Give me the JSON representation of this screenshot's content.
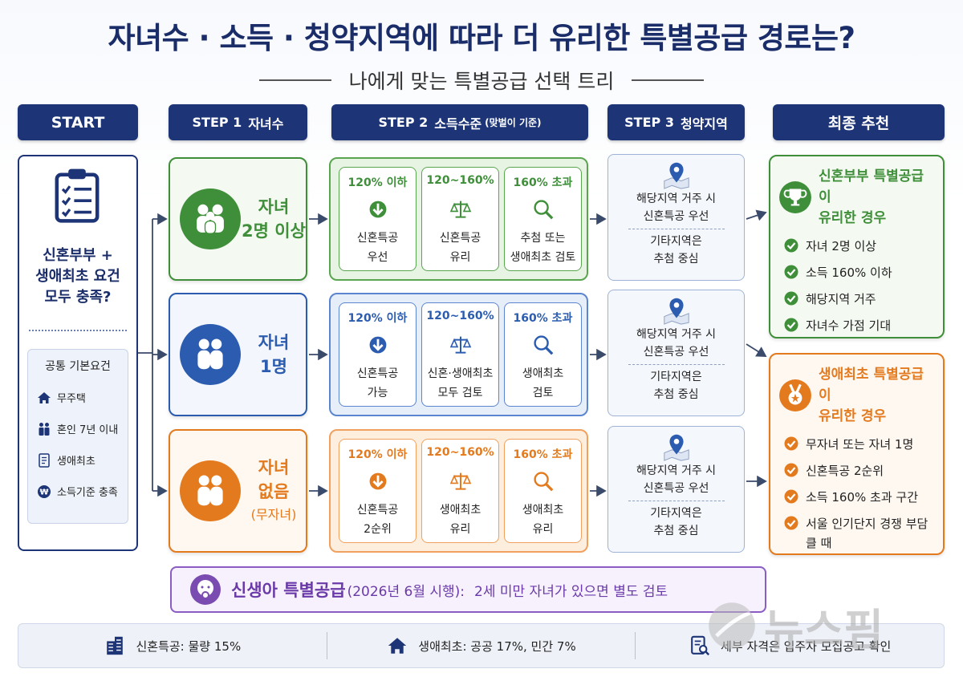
{
  "title": "자녀수 · 소득 · 청약지역에 따라 더 유리한 특별공급 경로는?",
  "subtitle": "나에게 맞는 특별공급 선택 트리",
  "headers": [
    {
      "step": "START"
    },
    {
      "step": "STEP 1",
      "label": "자녀수"
    },
    {
      "step": "STEP 2",
      "label": "소득수준",
      "note": "(맞벌이 기준)"
    },
    {
      "step": "STEP 3",
      "label": "청약지역"
    },
    {
      "step": "최종 추천"
    }
  ],
  "start": {
    "question": [
      "신혼부부 +",
      "생애최초 요건",
      "모두 충족?"
    ],
    "basic_title": "공통 기본요건",
    "basic_items": [
      "무주택",
      "혼인 7년 이내",
      "생애최초",
      "소득기준 충족"
    ]
  },
  "rows": [
    {
      "children": [
        "자녀",
        "2명 이상"
      ],
      "income": [
        {
          "range": "120% 이하",
          "result": [
            "신혼특공",
            "우선"
          ]
        },
        {
          "range": "120~160%",
          "result": [
            "신혼특공",
            "유리"
          ]
        },
        {
          "range": "160% 초과",
          "result": [
            "추첨 또는",
            "생애최초 검토"
          ]
        }
      ],
      "region": {
        "primary": [
          "해당지역 거주 시",
          "신혼특공 우선"
        ],
        "other": [
          "기타지역은",
          "추첨 중심"
        ]
      }
    },
    {
      "children": [
        "자녀",
        "1명"
      ],
      "income": [
        {
          "range": "120% 이하",
          "result": [
            "신혼특공",
            "가능"
          ]
        },
        {
          "range": "120~160%",
          "result": [
            "신혼·생애최초",
            "모두 검토"
          ]
        },
        {
          "range": "160% 초과",
          "result": [
            "생애최초",
            "검토"
          ]
        }
      ],
      "region": {
        "primary": [
          "해당지역 거주 시",
          "신혼특공 우선"
        ],
        "other": [
          "기타지역은",
          "추첨 중심"
        ]
      }
    },
    {
      "children": [
        "자녀",
        "없음",
        "(무자녀)"
      ],
      "income": [
        {
          "range": "120% 이하",
          "result": [
            "신혼특공",
            "2순위"
          ]
        },
        {
          "range": "120~160%",
          "result": [
            "생애최초",
            "유리"
          ]
        },
        {
          "range": "160% 초과",
          "result": [
            "생애최초",
            "유리"
          ]
        }
      ],
      "region": {
        "primary": [
          "해당지역 거주 시",
          "신혼특공 우선"
        ],
        "other": [
          "기타지역은",
          "추첨 중심"
        ]
      }
    }
  ],
  "final": [
    {
      "title": [
        "신혼부부 특별공급이",
        "유리한 경우"
      ],
      "items": [
        "자녀 2명 이상",
        "소득 160% 이하",
        "해당지역 거주",
        "자녀수 가점 기대"
      ]
    },
    {
      "title": [
        "생애최초 특별공급이",
        "유리한 경우"
      ],
      "items": [
        "무자녀 또는 자녀 1명",
        "신혼특공 2순위",
        "소득 160% 초과 구간",
        "서울 인기단지 경쟁 부담 클 때"
      ]
    }
  ],
  "banner": {
    "label": "신생아 특별공급",
    "period": "(2026년 6월 시행):",
    "text": "2세 미만 자녀가 있으면 별도 검토"
  },
  "footer": [
    "신혼특공: 물량 15%",
    "생애최초: 공공 17%, 민간 7%",
    "세부 자격은 입주자 모집공고 확인"
  ],
  "watermark": "뉴스핌"
}
